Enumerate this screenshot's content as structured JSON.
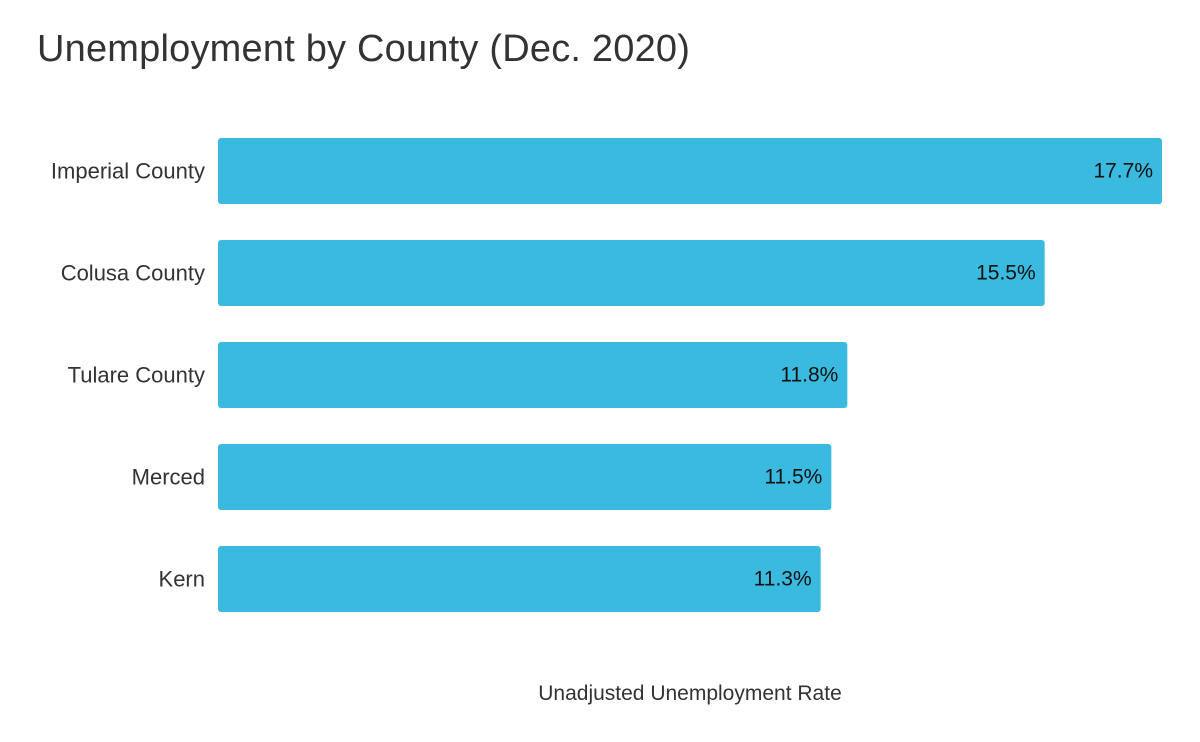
{
  "chart_data": {
    "type": "bar",
    "orientation": "horizontal",
    "title": "Unemployment by County (Dec. 2020)",
    "xlabel": "Unadjusted Unemployment Rate",
    "ylabel": "",
    "categories": [
      "Imperial County",
      "Colusa County",
      "Tulare County",
      "Merced",
      "Kern"
    ],
    "values": [
      17.7,
      15.5,
      11.8,
      11.5,
      11.3
    ],
    "value_labels": [
      "17.7%",
      "15.5%",
      "11.8%",
      "11.5%",
      "11.3%"
    ],
    "xlim": [
      0,
      17.7
    ],
    "grid": false,
    "legend": "none",
    "bar_color": "#3bbadf"
  }
}
